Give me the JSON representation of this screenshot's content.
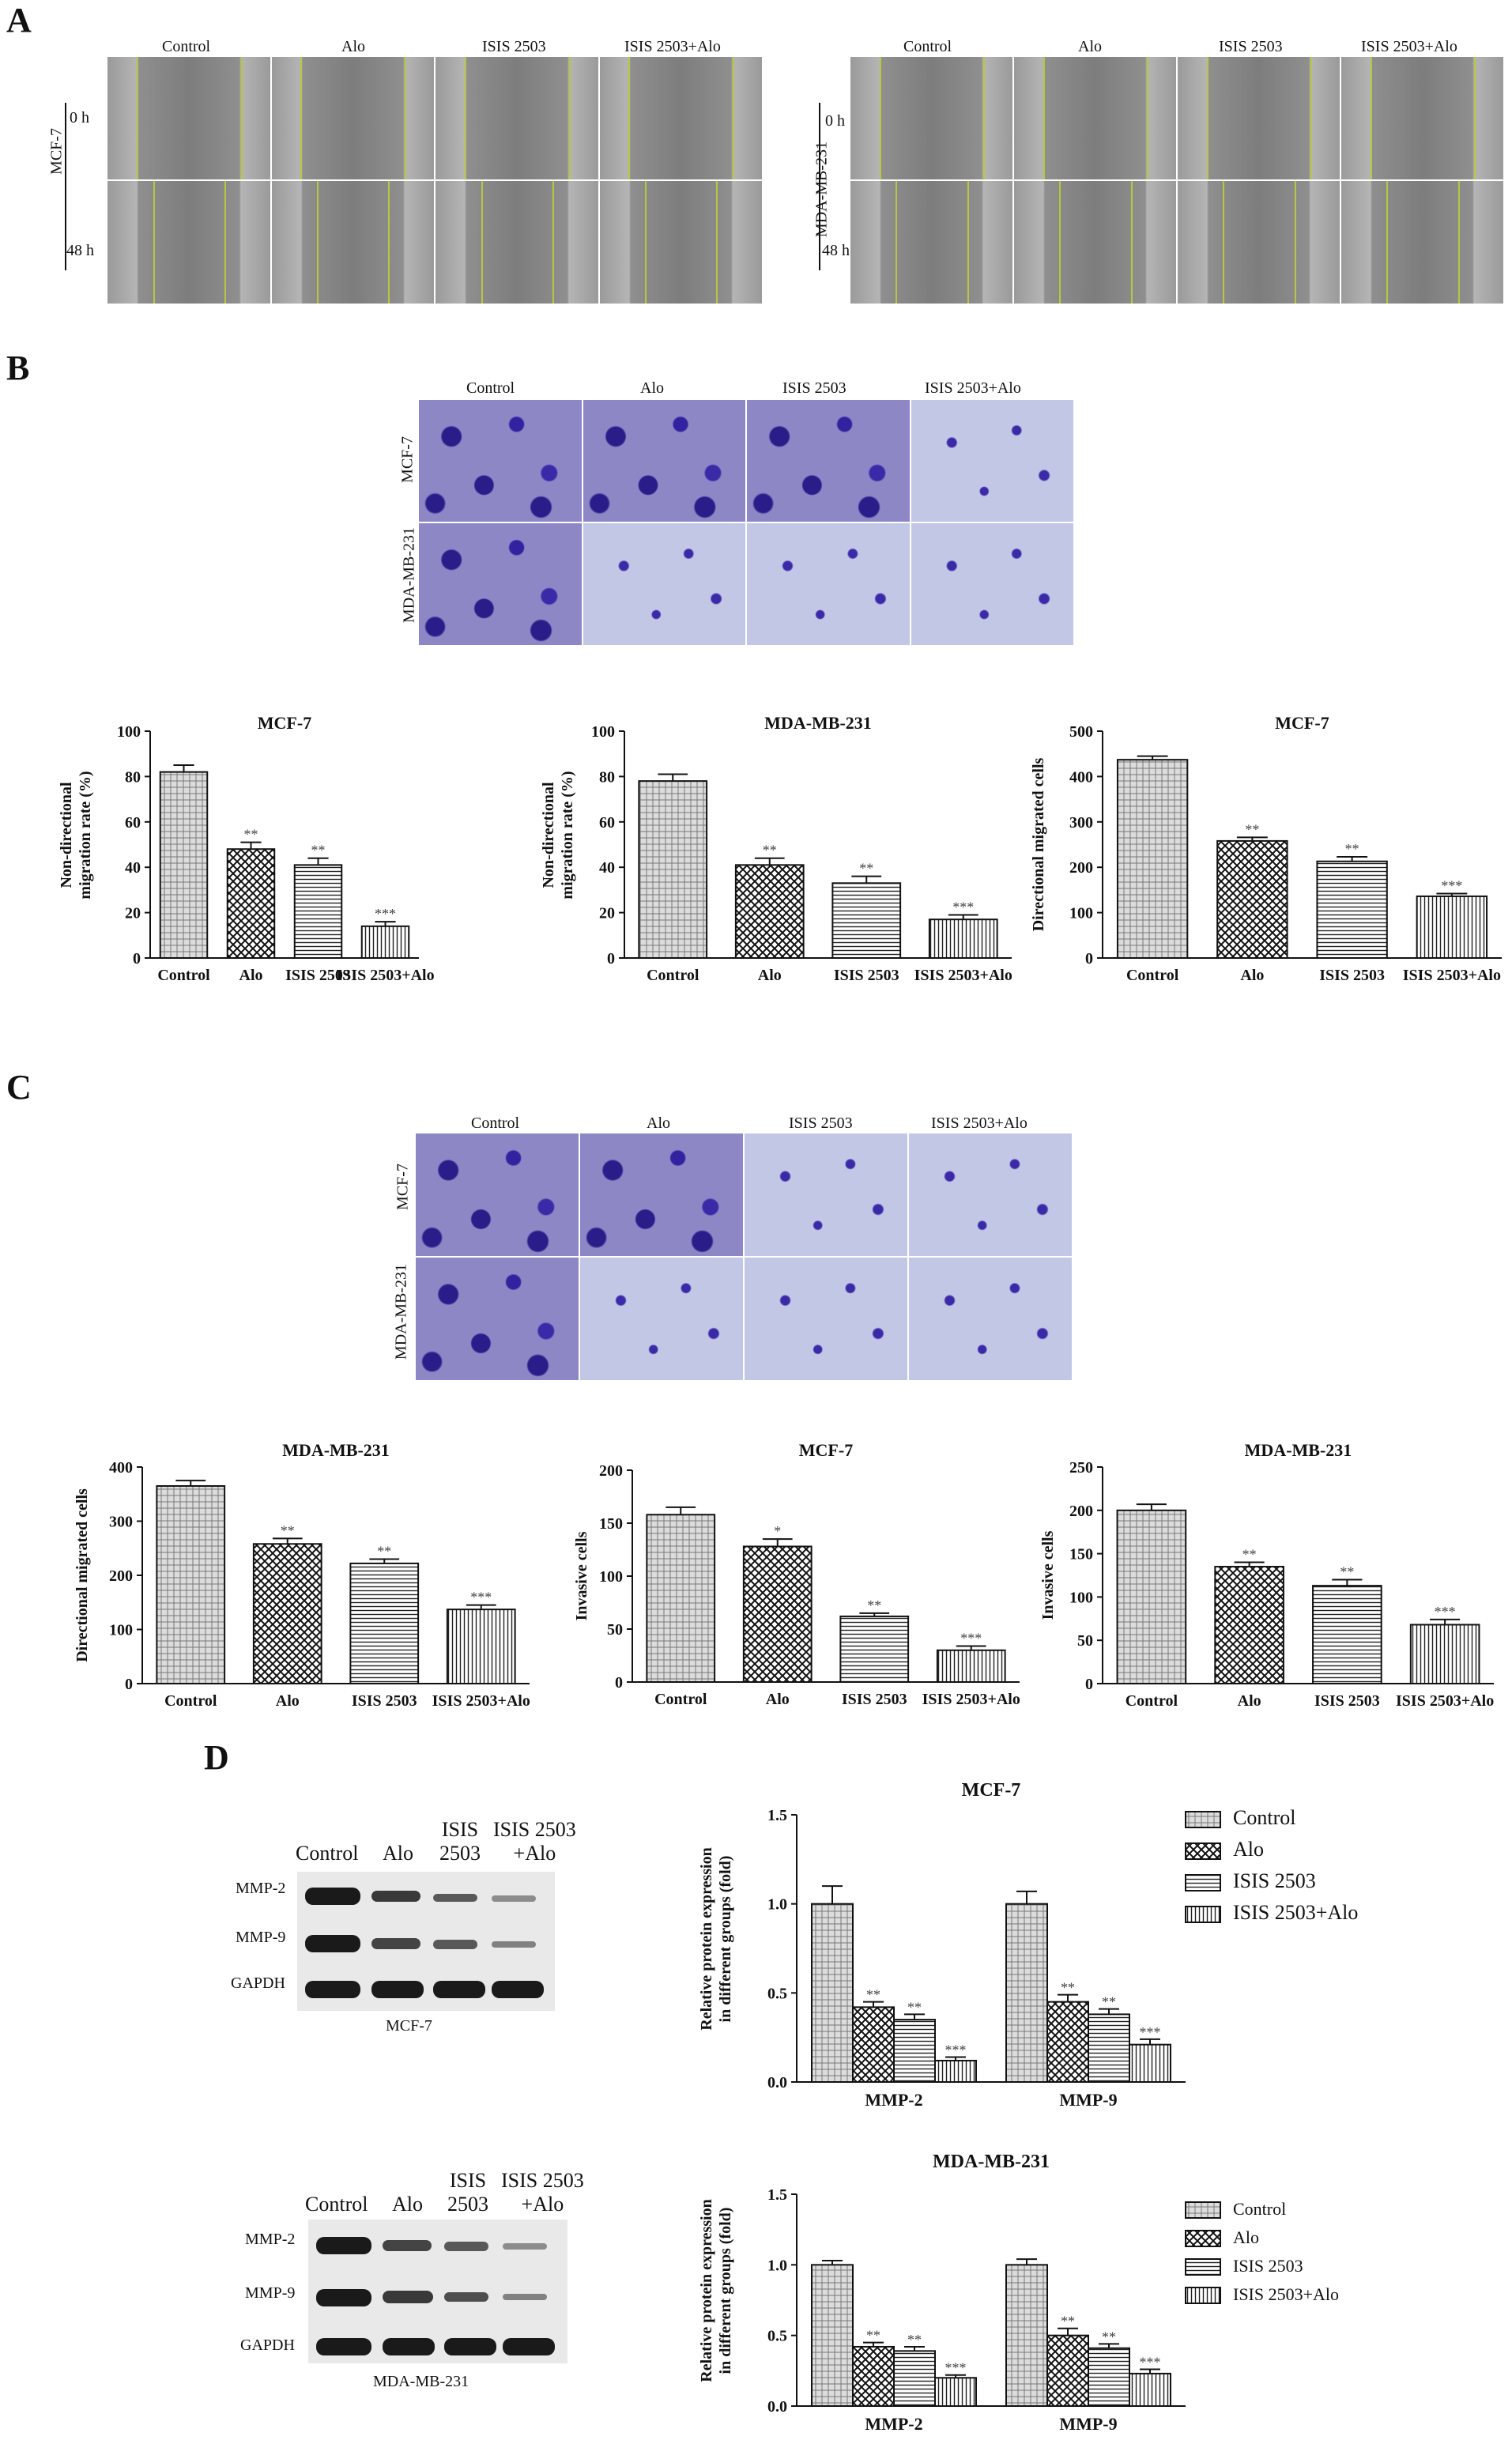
{
  "panels": {
    "A": "A",
    "B": "B",
    "C": "C",
    "D": "D"
  },
  "groups": [
    "Control",
    "Alo",
    "ISIS 2503",
    "ISIS 2503+Alo"
  ],
  "colors": {
    "bar_fill": "#e6e6e6",
    "bar_stroke": "#111111",
    "stain": "#2a1d8a",
    "wound_line": "#b9c640"
  },
  "panelA": {
    "left": {
      "cell": "MCF-7",
      "rows": [
        "0 h",
        "48 h"
      ]
    },
    "right": {
      "cell": "MDA-MB-231",
      "rows": [
        "0 h",
        "48 h"
      ]
    }
  },
  "panelB_images": {
    "rows": [
      "MCF-7",
      "MDA-MB-231"
    ]
  },
  "panelC_images": {
    "rows": [
      "MCF-7",
      "MDA-MB-231"
    ]
  },
  "panelD_blots": {
    "top": {
      "caption": "MCF-7",
      "lanes": [
        "Control",
        "Alo",
        "ISIS\n2503",
        "ISIS 2503\n+Alo"
      ],
      "bands": [
        "MMP-2",
        "MMP-9",
        "GAPDH"
      ]
    },
    "bottom": {
      "caption": "MDA-MB-231",
      "lanes": [
        "Control",
        "Alo",
        "ISIS\n2503",
        "ISIS 2503\n+Alo"
      ],
      "bands": [
        "MMP-2",
        "MMP-9",
        "GAPDH"
      ]
    }
  },
  "chart_data": [
    {
      "id": "b1",
      "type": "bar",
      "title": "MCF-7",
      "ylabel": "Non-directional\nmigration rate (%)",
      "categories": [
        "Control",
        "Alo",
        "ISIS 2503",
        "ISIS 2503+Alo"
      ],
      "values": [
        82,
        48,
        41,
        14
      ],
      "errors": [
        3,
        3,
        3,
        2
      ],
      "sig": [
        "",
        "**",
        "**",
        "***"
      ],
      "ylim": [
        0,
        100
      ],
      "yticks": [
        0,
        20,
        40,
        60,
        80,
        100
      ],
      "patterns": [
        "cross",
        "check",
        "hline",
        "vline"
      ]
    },
    {
      "id": "b2",
      "type": "bar",
      "title": "MDA-MB-231",
      "ylabel": "Non-directional\nmigration rate (%)",
      "categories": [
        "Control",
        "Alo",
        "ISIS 2503",
        "ISIS 2503+Alo"
      ],
      "values": [
        78,
        41,
        33,
        17
      ],
      "errors": [
        3,
        3,
        3,
        2
      ],
      "sig": [
        "",
        "**",
        "**",
        "***"
      ],
      "ylim": [
        0,
        100
      ],
      "yticks": [
        0,
        20,
        40,
        60,
        80,
        100
      ],
      "patterns": [
        "cross",
        "check",
        "hline",
        "vline"
      ]
    },
    {
      "id": "b3",
      "type": "bar",
      "title": "MCF-7",
      "ylabel": "Directional migrated cells",
      "categories": [
        "Control",
        "Alo",
        "ISIS 2503",
        "ISIS 2503+Alo"
      ],
      "values": [
        437,
        258,
        213,
        136
      ],
      "errors": [
        8,
        8,
        10,
        6
      ],
      "sig": [
        "",
        "**",
        "**",
        "***"
      ],
      "ylim": [
        0,
        500
      ],
      "yticks": [
        0,
        100,
        200,
        300,
        400,
        500
      ],
      "patterns": [
        "cross",
        "check",
        "hline",
        "vline"
      ]
    },
    {
      "id": "c1",
      "type": "bar",
      "title": "MDA-MB-231",
      "ylabel": "Directional migrated cells",
      "categories": [
        "Control",
        "Alo",
        "ISIS 2503",
        "ISIS 2503+Alo"
      ],
      "values": [
        365,
        258,
        222,
        137
      ],
      "errors": [
        10,
        10,
        8,
        8
      ],
      "sig": [
        "",
        "**",
        "**",
        "***"
      ],
      "ylim": [
        0,
        400
      ],
      "yticks": [
        0,
        100,
        200,
        300,
        400
      ],
      "patterns": [
        "cross",
        "check",
        "hline",
        "vline"
      ]
    },
    {
      "id": "c2",
      "type": "bar",
      "title": "MCF-7",
      "ylabel": "Invasive cells",
      "categories": [
        "Control",
        "Alo",
        "ISIS 2503",
        "ISIS 2503+Alo"
      ],
      "values": [
        158,
        128,
        62,
        30
      ],
      "errors": [
        7,
        7,
        3,
        4
      ],
      "sig": [
        "",
        "*",
        "**",
        "***"
      ],
      "ylim": [
        0,
        200
      ],
      "yticks": [
        0,
        50,
        100,
        150,
        200
      ],
      "patterns": [
        "cross",
        "check",
        "hline",
        "vline"
      ]
    },
    {
      "id": "c3",
      "type": "bar",
      "title": "MDA-MB-231",
      "ylabel": "Invasive cells",
      "categories": [
        "Control",
        "Alo",
        "ISIS 2503",
        "ISIS 2503+Alo"
      ],
      "values": [
        200,
        135,
        113,
        68
      ],
      "errors": [
        7,
        5,
        7,
        6
      ],
      "sig": [
        "",
        "**",
        "**",
        "***"
      ],
      "ylim": [
        0,
        250
      ],
      "yticks": [
        0,
        50,
        100,
        150,
        200,
        250
      ],
      "patterns": [
        "cross",
        "check",
        "hline",
        "vline"
      ]
    },
    {
      "id": "d1",
      "type": "bar",
      "title": "MCF-7",
      "ylabel": "Relative protein expression\nin different groups (fold)",
      "categories": [
        "MMP-2",
        "MMP-9"
      ],
      "series": [
        {
          "name": "Control",
          "values": [
            1.0,
            1.0
          ],
          "errors": [
            0.1,
            0.07
          ],
          "sig": [
            "",
            ""
          ]
        },
        {
          "name": "Alo",
          "values": [
            0.42,
            0.45
          ],
          "errors": [
            0.03,
            0.04
          ],
          "sig": [
            "**",
            "**"
          ]
        },
        {
          "name": "ISIS 2503",
          "values": [
            0.35,
            0.38
          ],
          "errors": [
            0.03,
            0.03
          ],
          "sig": [
            "**",
            "**"
          ]
        },
        {
          "name": "ISIS 2503+Alo",
          "values": [
            0.12,
            0.21
          ],
          "errors": [
            0.02,
            0.03
          ],
          "sig": [
            "***",
            "***"
          ]
        }
      ],
      "ylim": [
        0,
        1.5
      ],
      "yticks": [
        "0.0",
        "0.5",
        "1.0",
        "1.5"
      ],
      "legend": "top-right",
      "patterns": [
        "cross",
        "check",
        "hline",
        "vline"
      ]
    },
    {
      "id": "d2",
      "type": "bar",
      "title": "MDA-MB-231",
      "ylabel": "Relative protein expression\nin different groups (fold)",
      "categories": [
        "MMP-2",
        "MMP-9"
      ],
      "series": [
        {
          "name": "Control",
          "values": [
            1.0,
            1.0
          ],
          "errors": [
            0.03,
            0.04
          ],
          "sig": [
            "",
            ""
          ]
        },
        {
          "name": "Alo",
          "values": [
            0.42,
            0.5
          ],
          "errors": [
            0.03,
            0.05
          ],
          "sig": [
            "**",
            "**"
          ]
        },
        {
          "name": "ISIS 2503",
          "values": [
            0.39,
            0.41
          ],
          "errors": [
            0.03,
            0.03
          ],
          "sig": [
            "**",
            "**"
          ]
        },
        {
          "name": "ISIS 2503+Alo",
          "values": [
            0.2,
            0.23
          ],
          "errors": [
            0.02,
            0.03
          ],
          "sig": [
            "***",
            "***"
          ]
        }
      ],
      "ylim": [
        0,
        1.5
      ],
      "yticks": [
        "0.0",
        "0.5",
        "1.0",
        "1.5"
      ],
      "legend": "top-right",
      "patterns": [
        "cross",
        "check",
        "hline",
        "vline"
      ]
    }
  ]
}
